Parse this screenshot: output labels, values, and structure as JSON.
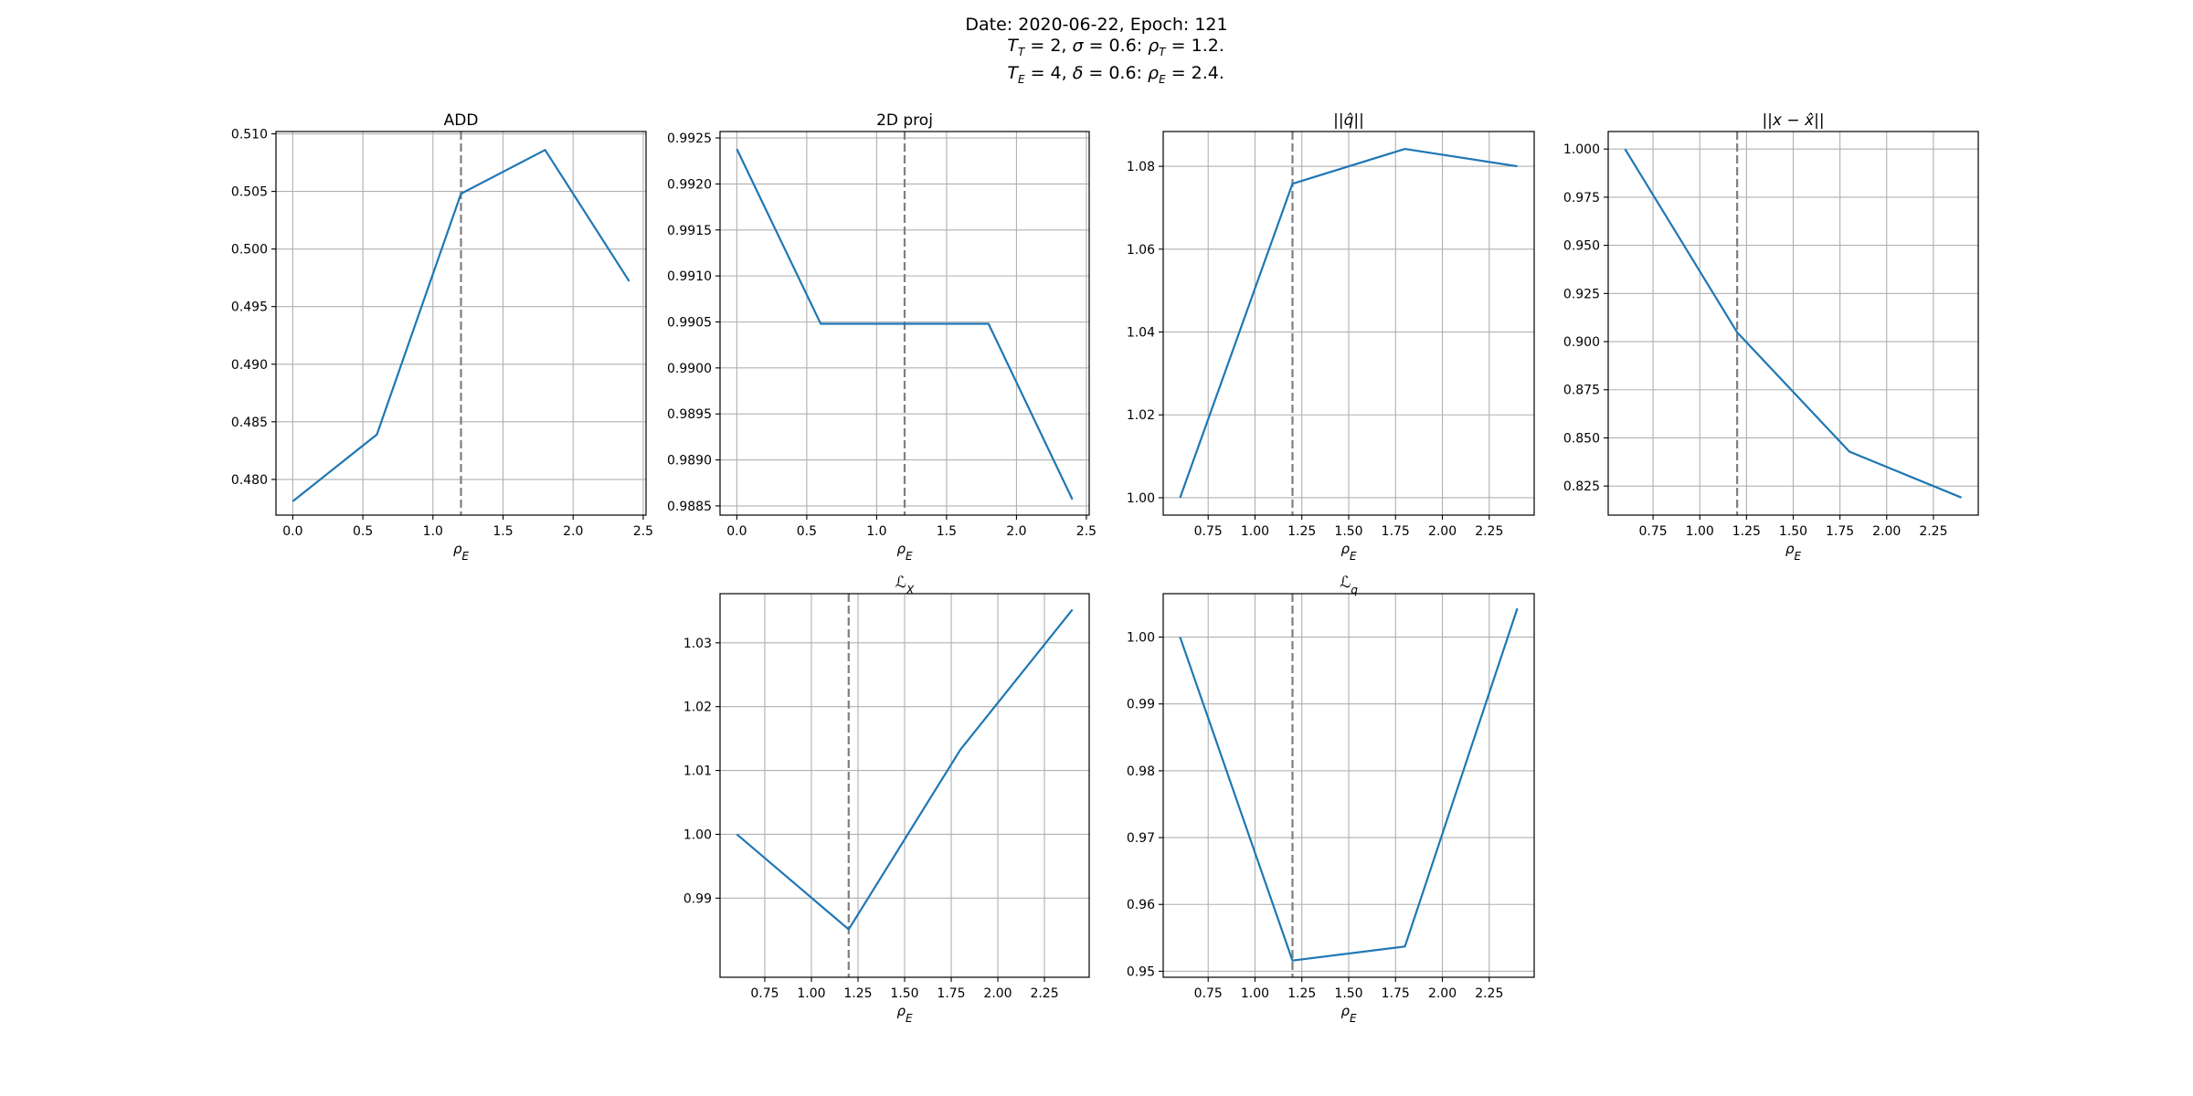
{
  "suptitle": {
    "line1": "Date: 2020-06-22, Epoch: 121",
    "line2": "T_T = 2, σ = 0.6: ρ_T = 1.2.",
    "line3": "T_E = 4, δ = 0.6: ρ_E = 2.4."
  },
  "colors": {
    "line": "#1f77b4",
    "vline": "#7f7f7f",
    "grid": "#b0b0b0"
  },
  "chart_data": [
    {
      "type": "line",
      "title": "ADD",
      "xlabel": "ρ_E",
      "ylabel": "",
      "x": [
        0.0,
        0.6,
        1.2,
        1.8,
        2.4
      ],
      "y": [
        0.4781,
        0.4839,
        0.5048,
        0.5086,
        0.4972
      ],
      "xlim": [
        -0.12,
        2.52
      ],
      "ylim": [
        0.4769,
        0.5102
      ],
      "xticks": [
        0.0,
        0.5,
        1.0,
        1.5,
        2.0,
        2.5
      ],
      "xticklabels": [
        "0.0",
        "0.5",
        "1.0",
        "1.5",
        "2.0",
        "2.5"
      ],
      "yticks": [
        0.48,
        0.485,
        0.49,
        0.495,
        0.5,
        0.505,
        0.51
      ],
      "yticklabels": [
        "0.480",
        "0.485",
        "0.490",
        "0.495",
        "0.500",
        "0.505",
        "0.510"
      ],
      "vline": 1.2,
      "grid": true
    },
    {
      "type": "line",
      "title": "2D proj",
      "xlabel": "ρ_E",
      "ylabel": "",
      "x": [
        0.0,
        0.6,
        1.2,
        1.8,
        2.4
      ],
      "y": [
        0.99238,
        0.99048,
        0.99048,
        0.99048,
        0.98857
      ],
      "xlim": [
        -0.12,
        2.52
      ],
      "ylim": [
        0.9884,
        0.99257
      ],
      "xticks": [
        0.0,
        0.5,
        1.0,
        1.5,
        2.0,
        2.5
      ],
      "xticklabels": [
        "0.0",
        "0.5",
        "1.0",
        "1.5",
        "2.0",
        "2.5"
      ],
      "yticks": [
        0.9885,
        0.989,
        0.9895,
        0.99,
        0.9905,
        0.991,
        0.9915,
        0.992,
        0.9925
      ],
      "yticklabels": [
        "0.9885",
        "0.9890",
        "0.9895",
        "0.9900",
        "0.9905",
        "0.9910",
        "0.9915",
        "0.9920",
        "0.9925"
      ],
      "vline": 1.2,
      "grid": true
    },
    {
      "type": "line",
      "title": "||q̂||",
      "xlabel": "ρ_E",
      "ylabel": "",
      "x": [
        0.6,
        1.2,
        1.8,
        2.4
      ],
      "y": [
        1.0,
        1.0758,
        1.0842,
        1.08
      ],
      "xlim": [
        0.51,
        2.49
      ],
      "ylim": [
        0.9958,
        1.0884
      ],
      "xticks": [
        0.75,
        1.0,
        1.25,
        1.5,
        1.75,
        2.0,
        2.25
      ],
      "xticklabels": [
        "0.75",
        "1.00",
        "1.25",
        "1.50",
        "1.75",
        "2.00",
        "2.25"
      ],
      "yticks": [
        1.0,
        1.02,
        1.04,
        1.06,
        1.08
      ],
      "yticklabels": [
        "1.00",
        "1.02",
        "1.04",
        "1.06",
        "1.08"
      ],
      "vline": 1.2,
      "grid": true
    },
    {
      "type": "line",
      "title": "||x − x̂||",
      "xlabel": "ρ_E",
      "ylabel": "",
      "x": [
        0.6,
        1.2,
        1.8,
        2.4
      ],
      "y": [
        1.0,
        0.9048,
        0.8429,
        0.819
      ],
      "xlim": [
        0.51,
        2.49
      ],
      "ylim": [
        0.8099,
        1.0091
      ],
      "xticks": [
        0.75,
        1.0,
        1.25,
        1.5,
        1.75,
        2.0,
        2.25
      ],
      "xticklabels": [
        "0.75",
        "1.00",
        "1.25",
        "1.50",
        "1.75",
        "2.00",
        "2.25"
      ],
      "yticks": [
        0.825,
        0.85,
        0.875,
        0.9,
        0.925,
        0.95,
        0.975,
        1.0
      ],
      "yticklabels": [
        "0.825",
        "0.850",
        "0.875",
        "0.900",
        "0.925",
        "0.950",
        "0.975",
        "1.000"
      ],
      "vline": 1.2,
      "grid": true
    },
    {
      "type": "line",
      "title": "ℒ_X",
      "xlabel": "ρ_E",
      "ylabel": "",
      "x": [
        0.6,
        1.2,
        1.8,
        2.4
      ],
      "y": [
        1.0,
        0.9851,
        1.0133,
        1.0352
      ],
      "xlim": [
        0.51,
        2.49
      ],
      "ylim": [
        0.9776,
        1.0377
      ],
      "xticks": [
        0.75,
        1.0,
        1.25,
        1.5,
        1.75,
        2.0,
        2.25
      ],
      "xticklabels": [
        "0.75",
        "1.00",
        "1.25",
        "1.50",
        "1.75",
        "2.00",
        "2.25"
      ],
      "yticks": [
        0.99,
        1.0,
        1.01,
        1.02,
        1.03
      ],
      "yticklabels": [
        "0.99",
        "1.00",
        "1.01",
        "1.02",
        "1.03"
      ],
      "vline": 1.2,
      "grid": true
    },
    {
      "type": "line",
      "title": "ℒ_q",
      "xlabel": "ρ_E",
      "ylabel": "",
      "x": [
        0.6,
        1.2,
        1.8,
        2.4
      ],
      "y": [
        1.0,
        0.9516,
        0.9537,
        1.0043
      ],
      "xlim": [
        0.51,
        2.49
      ],
      "ylim": [
        0.9491,
        1.0065
      ],
      "xticks": [
        0.75,
        1.0,
        1.25,
        1.5,
        1.75,
        2.0,
        2.25
      ],
      "xticklabels": [
        "0.75",
        "1.00",
        "1.25",
        "1.50",
        "1.75",
        "2.00",
        "2.25"
      ],
      "yticks": [
        0.95,
        0.96,
        0.97,
        0.98,
        0.99,
        1.0
      ],
      "yticklabels": [
        "0.95",
        "0.96",
        "0.97",
        "0.98",
        "0.99",
        "1.00"
      ],
      "vline": 1.2,
      "grid": true
    }
  ]
}
